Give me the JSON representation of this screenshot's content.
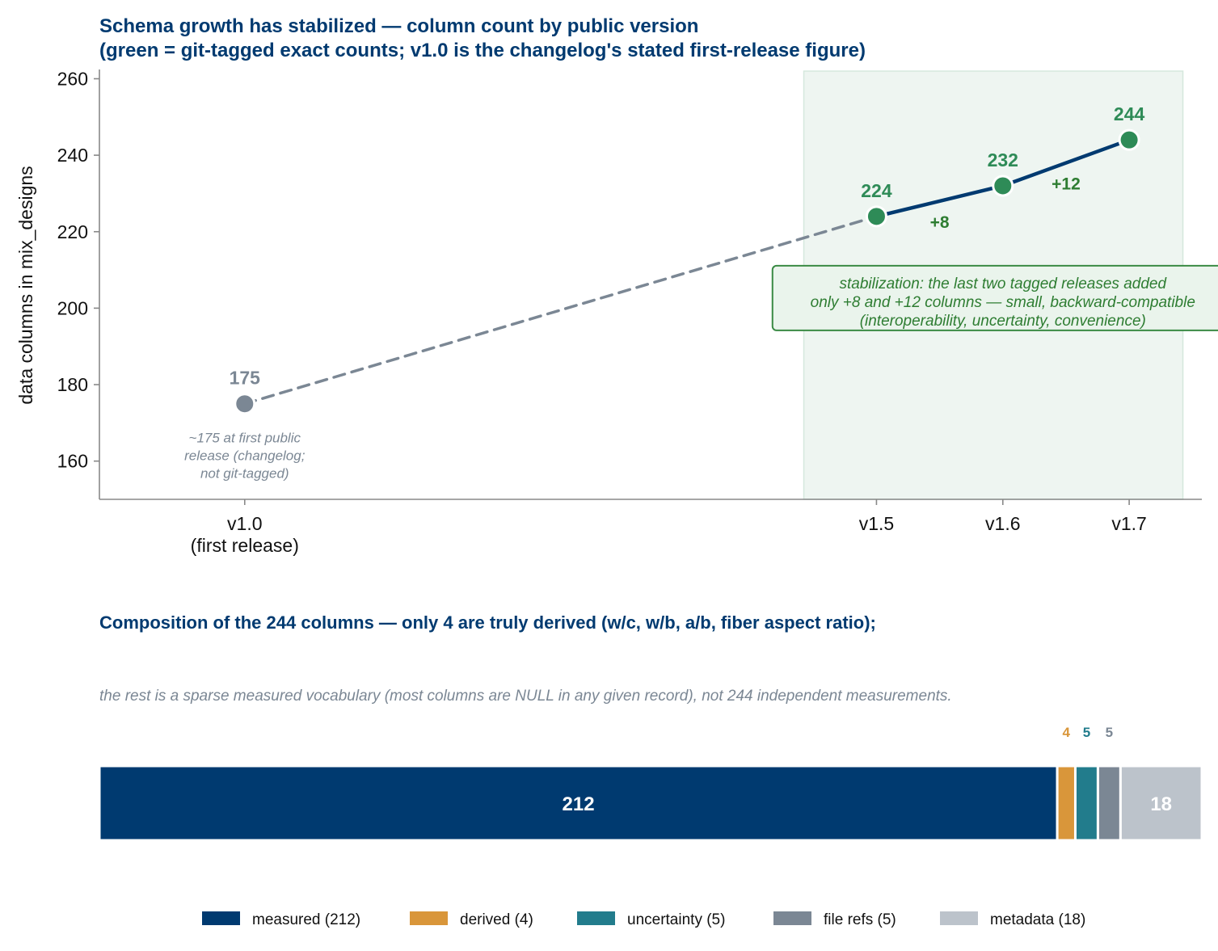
{
  "chart_data": [
    {
      "type": "line",
      "title": "Schema growth has stabilized — column count by public version",
      "subtitle": "(green = git-tagged exact counts; v1.0 is the changelog's stated first-release figure)",
      "xlabel": "",
      "ylabel": "data columns in mix_designs",
      "ylim": [
        150,
        262
      ],
      "yticks": [
        160,
        180,
        200,
        220,
        240,
        260
      ],
      "x": [
        1.0,
        1.5,
        1.6,
        1.7
      ],
      "xlim": [
        0.885,
        1.7575
      ],
      "tick_labels": [
        "v1.0",
        "v1.5",
        "v1.6",
        "v1.7"
      ],
      "tick_sublabels": [
        "(first release)",
        "",
        "",
        ""
      ],
      "values": [
        175,
        224,
        232,
        244
      ],
      "tagged": [
        false,
        true,
        true,
        true
      ],
      "value_labels": [
        "175",
        "224",
        "232",
        "244"
      ],
      "deltas": [
        {
          "from": 1,
          "to": 2,
          "label": "+8"
        },
        {
          "from": 2,
          "to": 3,
          "label": "+12"
        }
      ],
      "highlight_region": {
        "x0": 1.4425,
        "x1": 1.7425
      },
      "annotation": {
        "lines": [
          "stabilization: the last two tagged releases added",
          "only +8 and +12 columns — small, backward-compatible",
          "(interoperability, uncertainty, convenience)"
        ],
        "x": 1.6,
        "y": 202
      },
      "first_point_note": [
        "~175 at first public",
        "release (changelog;",
        "not git-tagged)"
      ],
      "grid": false,
      "colors": {
        "tagged": "#2e8b57",
        "untagged": "#7b8794",
        "tagged_line": "#003a70",
        "untagged_line": "#7b8794",
        "region": "#eef5f1",
        "annotation_border": "#3a8a44",
        "annotation_fill": "#eaf4ec"
      }
    },
    {
      "type": "bar",
      "orientation": "horizontal-stacked",
      "title": "Composition of the 244 columns — only 4 are truly derived (w/c, w/b, a/b, fiber aspect ratio);",
      "subtitle": "the rest is a sparse measured vocabulary (most columns are NULL in any given record), not 244 independent measurements.",
      "total": 244,
      "series": [
        {
          "name": "measured (212)",
          "value": 212,
          "label": "212",
          "color": "#003a70",
          "label_inside": true
        },
        {
          "name": "derived (4)",
          "value": 4,
          "label": "4",
          "color": "#d9963a",
          "label_inside": false
        },
        {
          "name": "uncertainty (5)",
          "value": 5,
          "label": "5",
          "color": "#227c8c",
          "label_inside": false
        },
        {
          "name": "file refs (5)",
          "value": 5,
          "label": "5",
          "color": "#7b8794",
          "label_inside": false
        },
        {
          "name": "metadata (18)",
          "value": 18,
          "label": "18",
          "color": "#bcc3cb",
          "label_inside": true
        }
      ],
      "legend_position": "bottom-center"
    }
  ]
}
